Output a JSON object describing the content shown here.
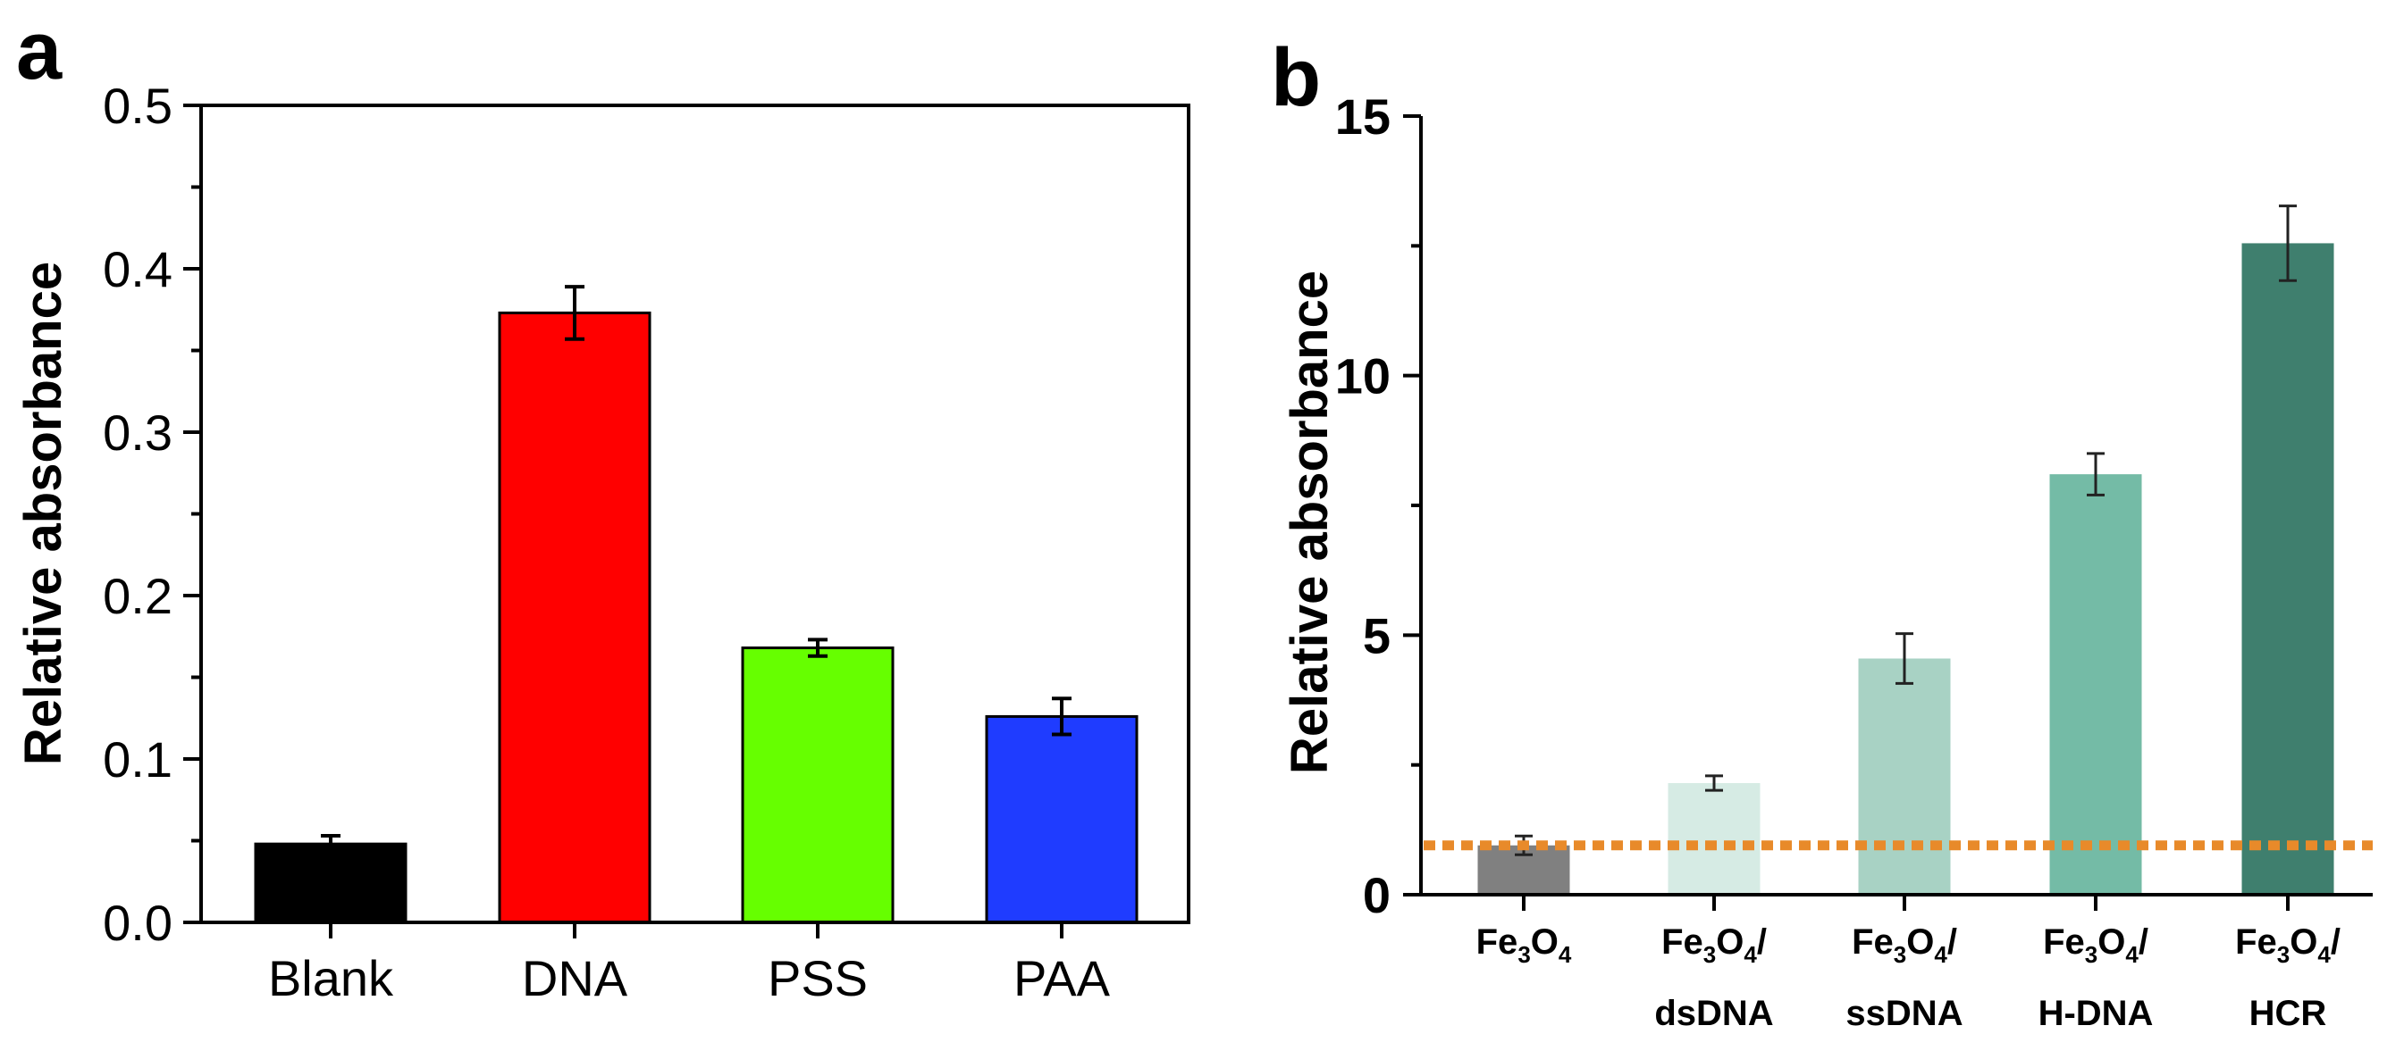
{
  "chart_data": [
    {
      "panel": "a",
      "type": "bar",
      "ylabel": "Relative absorbance",
      "xlabel": "",
      "ylim": [
        0,
        0.5
      ],
      "yticks": [
        "0.0",
        "0.1",
        "0.2",
        "0.3",
        "0.4",
        "0.5"
      ],
      "ytick_values": [
        0,
        0.1,
        0.2,
        0.3,
        0.4,
        0.5
      ],
      "categories": [
        "Blank",
        "DNA",
        "PSS",
        "PAA"
      ],
      "values": [
        0.048,
        0.373,
        0.168,
        0.126
      ],
      "errors": [
        0.005,
        0.016,
        0.005,
        0.011
      ],
      "colors": [
        "#000000",
        "#ff0000",
        "#66ff00",
        "#1f3cff"
      ]
    },
    {
      "panel": "b",
      "type": "bar",
      "ylabel": "Relative absorbance",
      "xlabel": "",
      "ylim": [
        0,
        15
      ],
      "yticks": [
        "0",
        "5",
        "10",
        "15"
      ],
      "ytick_values": [
        0,
        5,
        10,
        15
      ],
      "categories": [
        {
          "main": "Fe",
          "sub1": "3",
          "mid": "O",
          "sub2": "4",
          "tail": "",
          "line2": ""
        },
        {
          "main": "Fe",
          "sub1": "3",
          "mid": "O",
          "sub2": "4",
          "tail": "/",
          "line2": "dsDNA"
        },
        {
          "main": "Fe",
          "sub1": "3",
          "mid": "O",
          "sub2": "4",
          "tail": "/",
          "line2": "ssDNA"
        },
        {
          "main": "Fe",
          "sub1": "3",
          "mid": "O",
          "sub2": "4",
          "tail": "/",
          "line2": "H-DNA"
        },
        {
          "main": "Fe",
          "sub1": "3",
          "mid": "O",
          "sub2": "4",
          "tail": "/",
          "line2": "HCR"
        }
      ],
      "values": [
        0.95,
        2.15,
        4.55,
        8.1,
        12.55
      ],
      "errors": [
        0.18,
        0.14,
        0.48,
        0.4,
        0.72
      ],
      "colors": [
        "#808080",
        "#d6ebe4",
        "#a8d2c4",
        "#74bba6",
        "#3f7f6e"
      ],
      "reference_line": {
        "value": 0.95,
        "color": "#e88a2a"
      }
    }
  ]
}
